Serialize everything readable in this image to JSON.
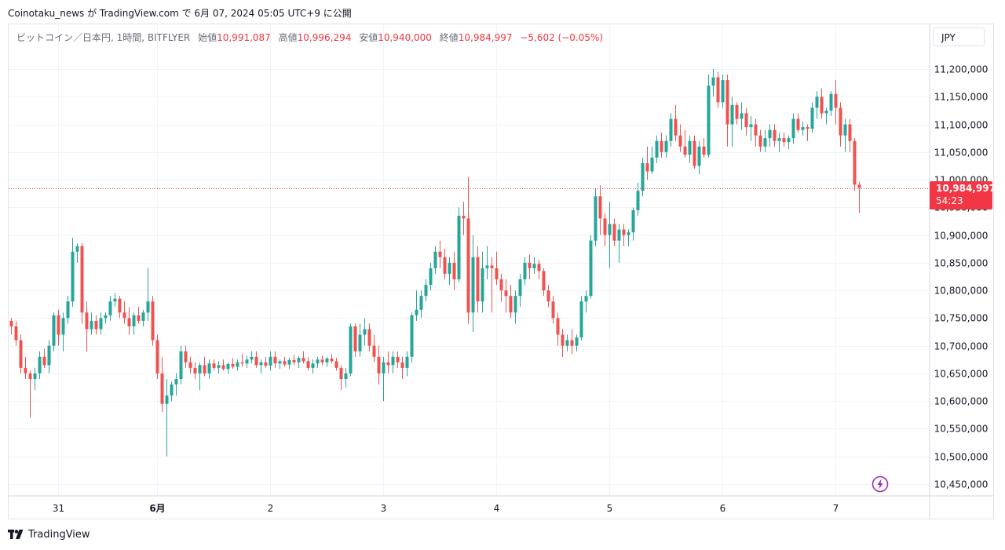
{
  "header": {
    "publish_line": "Coinotaku_news が TradingView.com で 6月 07, 2024 05:05 UTC+9 に公開"
  },
  "legend": {
    "symbol": "ビットコイン／日本円, 1時間, BITFLYER",
    "open_label": "始値",
    "open": "10,991,087",
    "high_label": "高値",
    "high": "10,996,294",
    "low_label": "安値",
    "low": "10,940,000",
    "close_label": "終値",
    "close": "10,984,997",
    "change": "−5,602 (−0.05%)"
  },
  "currency": "JPY",
  "last_price": {
    "price": "10,984,997",
    "countdown": "54:23"
  },
  "brand": "TradingView",
  "colors": {
    "up": "#26a69a",
    "down": "#ef5350",
    "grid": "#f0f3fa",
    "axis_text": "#131722"
  },
  "chart_data": {
    "type": "candlestick",
    "interval": "1時間",
    "symbol": "BTC/JPY",
    "exchange": "BITFLYER",
    "y_axis": {
      "ticks": [
        "11,200,000",
        "11,150,000",
        "11,100,000",
        "11,050,000",
        "11,000,000",
        "10,950,000",
        "10,900,000",
        "10,850,000",
        "10,800,000",
        "10,750,000",
        "10,700,000",
        "10,650,000",
        "10,600,000",
        "10,550,000",
        "10,500,000",
        "10,450,000"
      ],
      "tick_values": [
        11200000,
        11150000,
        11100000,
        11050000,
        11000000,
        10950000,
        10900000,
        10850000,
        10800000,
        10750000,
        10700000,
        10650000,
        10600000,
        10550000,
        10500000,
        10450000
      ],
      "range": [
        10430000,
        11240000
      ]
    },
    "x_axis": {
      "labels": [
        "31",
        "6月",
        "2",
        "3",
        "4",
        "5",
        "6",
        "7"
      ],
      "bold": [
        false,
        true,
        false,
        false,
        false,
        false,
        false,
        false
      ],
      "candle_index": [
        10,
        31,
        55,
        79,
        103,
        127,
        151,
        175
      ]
    },
    "last_price": 10984997,
    "ohlc": [
      [
        10745000,
        10750000,
        10720000,
        10735000
      ],
      [
        10735000,
        10745000,
        10700000,
        10710000
      ],
      [
        10710000,
        10720000,
        10650000,
        10660000
      ],
      [
        10660000,
        10680000,
        10640000,
        10650000
      ],
      [
        10650000,
        10655000,
        10570000,
        10640000
      ],
      [
        10640000,
        10660000,
        10620000,
        10650000
      ],
      [
        10650000,
        10690000,
        10640000,
        10680000
      ],
      [
        10680000,
        10695000,
        10660000,
        10665000
      ],
      [
        10665000,
        10710000,
        10650000,
        10700000
      ],
      [
        10700000,
        10760000,
        10690000,
        10755000
      ],
      [
        10755000,
        10765000,
        10700000,
        10720000
      ],
      [
        10720000,
        10760000,
        10690000,
        10750000
      ],
      [
        10750000,
        10790000,
        10740000,
        10780000
      ],
      [
        10780000,
        10895000,
        10770000,
        10870000
      ],
      [
        10870000,
        10885000,
        10850000,
        10880000
      ],
      [
        10880000,
        10885000,
        10740000,
        10760000
      ],
      [
        10760000,
        10780000,
        10690000,
        10730000
      ],
      [
        10730000,
        10760000,
        10720000,
        10745000
      ],
      [
        10745000,
        10755000,
        10720000,
        10730000
      ],
      [
        10730000,
        10760000,
        10720000,
        10750000
      ],
      [
        10750000,
        10760000,
        10740000,
        10755000
      ],
      [
        10755000,
        10790000,
        10745000,
        10780000
      ],
      [
        10780000,
        10795000,
        10770000,
        10785000
      ],
      [
        10785000,
        10790000,
        10750000,
        10760000
      ],
      [
        10760000,
        10780000,
        10740000,
        10750000
      ],
      [
        10750000,
        10770000,
        10720000,
        10735000
      ],
      [
        10735000,
        10760000,
        10720000,
        10755000
      ],
      [
        10755000,
        10770000,
        10740000,
        10745000
      ],
      [
        10745000,
        10765000,
        10735000,
        10760000
      ],
      [
        10760000,
        10840000,
        10745000,
        10780000
      ],
      [
        10780000,
        10790000,
        10700000,
        10710000
      ],
      [
        10710000,
        10720000,
        10640000,
        10650000
      ],
      [
        10650000,
        10680000,
        10580000,
        10595000
      ],
      [
        10595000,
        10640000,
        10500000,
        10610000
      ],
      [
        10610000,
        10635000,
        10600000,
        10630000
      ],
      [
        10630000,
        10650000,
        10610000,
        10640000
      ],
      [
        10640000,
        10700000,
        10630000,
        10690000
      ],
      [
        10690000,
        10700000,
        10660000,
        10670000
      ],
      [
        10670000,
        10680000,
        10650000,
        10660000
      ],
      [
        10660000,
        10670000,
        10640000,
        10650000
      ],
      [
        10650000,
        10670000,
        10620000,
        10665000
      ],
      [
        10665000,
        10680000,
        10645000,
        10650000
      ],
      [
        10650000,
        10675000,
        10640000,
        10668000
      ],
      [
        10668000,
        10675000,
        10655000,
        10660000
      ],
      [
        10660000,
        10672000,
        10650000,
        10665000
      ],
      [
        10665000,
        10675000,
        10655000,
        10658000
      ],
      [
        10658000,
        10670000,
        10650000,
        10667000
      ],
      [
        10667000,
        10678000,
        10658000,
        10662000
      ],
      [
        10662000,
        10675000,
        10655000,
        10670000
      ],
      [
        10670000,
        10685000,
        10662000,
        10668000
      ],
      [
        10668000,
        10682000,
        10660000,
        10675000
      ],
      [
        10675000,
        10690000,
        10668000,
        10680000
      ],
      [
        10680000,
        10690000,
        10660000,
        10665000
      ],
      [
        10665000,
        10675000,
        10650000,
        10670000
      ],
      [
        10670000,
        10680000,
        10660000,
        10664000
      ],
      [
        10664000,
        10690000,
        10655000,
        10680000
      ],
      [
        10680000,
        10690000,
        10660000,
        10668000
      ],
      [
        10668000,
        10675000,
        10658000,
        10672000
      ],
      [
        10672000,
        10680000,
        10662000,
        10666000
      ],
      [
        10666000,
        10678000,
        10658000,
        10674000
      ],
      [
        10674000,
        10684000,
        10665000,
        10670000
      ],
      [
        10670000,
        10682000,
        10660000,
        10678000
      ],
      [
        10678000,
        10690000,
        10668000,
        10672000
      ],
      [
        10672000,
        10680000,
        10655000,
        10660000
      ],
      [
        10660000,
        10675000,
        10650000,
        10668000
      ],
      [
        10668000,
        10680000,
        10660000,
        10675000
      ],
      [
        10675000,
        10682000,
        10665000,
        10670000
      ],
      [
        10670000,
        10680000,
        10662000,
        10677000
      ],
      [
        10677000,
        10685000,
        10668000,
        10672000
      ],
      [
        10672000,
        10678000,
        10655000,
        10660000
      ],
      [
        10660000,
        10665000,
        10620000,
        10640000
      ],
      [
        10640000,
        10660000,
        10625000,
        10650000
      ],
      [
        10650000,
        10740000,
        10645000,
        10735000
      ],
      [
        10735000,
        10740000,
        10680000,
        10690000
      ],
      [
        10690000,
        10740000,
        10680000,
        10720000
      ],
      [
        10720000,
        10750000,
        10700000,
        10730000
      ],
      [
        10730000,
        10740000,
        10690000,
        10700000
      ],
      [
        10700000,
        10720000,
        10670000,
        10680000
      ],
      [
        10680000,
        10700000,
        10630000,
        10650000
      ],
      [
        10650000,
        10680000,
        10600000,
        10670000
      ],
      [
        10670000,
        10690000,
        10650000,
        10665000
      ],
      [
        10665000,
        10690000,
        10650000,
        10680000
      ],
      [
        10680000,
        10690000,
        10660000,
        10670000
      ],
      [
        10670000,
        10680000,
        10640000,
        10660000
      ],
      [
        10660000,
        10690000,
        10645000,
        10680000
      ],
      [
        10680000,
        10760000,
        10670000,
        10755000
      ],
      [
        10755000,
        10800000,
        10745000,
        10765000
      ],
      [
        10765000,
        10800000,
        10750000,
        10790000
      ],
      [
        10790000,
        10820000,
        10780000,
        10810000
      ],
      [
        10810000,
        10850000,
        10800000,
        10840000
      ],
      [
        10840000,
        10880000,
        10830000,
        10870000
      ],
      [
        10870000,
        10890000,
        10840000,
        10860000
      ],
      [
        10860000,
        10875000,
        10820000,
        10830000
      ],
      [
        10830000,
        10860000,
        10810000,
        10850000
      ],
      [
        10850000,
        10870000,
        10800000,
        10820000
      ],
      [
        10820000,
        10950000,
        10815000,
        10935000
      ],
      [
        10935000,
        10960000,
        10900000,
        10930000
      ],
      [
        10930000,
        11005000,
        10740000,
        10760000
      ],
      [
        10760000,
        10900000,
        10725000,
        10860000
      ],
      [
        10860000,
        10880000,
        10760000,
        10780000
      ],
      [
        10780000,
        10870000,
        10760000,
        10840000
      ],
      [
        10840000,
        10880000,
        10820000,
        10845000
      ],
      [
        10845000,
        10860000,
        10760000,
        10840000
      ],
      [
        10840000,
        10870000,
        10810000,
        10820000
      ],
      [
        10820000,
        10830000,
        10780000,
        10800000
      ],
      [
        10800000,
        10820000,
        10760000,
        10790000
      ],
      [
        10790000,
        10810000,
        10750000,
        10760000
      ],
      [
        10760000,
        10800000,
        10740000,
        10790000
      ],
      [
        10790000,
        10830000,
        10770000,
        10820000
      ],
      [
        10820000,
        10860000,
        10810000,
        10850000
      ],
      [
        10850000,
        10865000,
        10820000,
        10840000
      ],
      [
        10840000,
        10860000,
        10830000,
        10848000
      ],
      [
        10848000,
        10855000,
        10820000,
        10835000
      ],
      [
        10835000,
        10840000,
        10790000,
        10800000
      ],
      [
        10800000,
        10810000,
        10770000,
        10780000
      ],
      [
        10780000,
        10790000,
        10740000,
        10750000
      ],
      [
        10750000,
        10760000,
        10700000,
        10720000
      ],
      [
        10720000,
        10730000,
        10680000,
        10700000
      ],
      [
        10700000,
        10720000,
        10690000,
        10710000
      ],
      [
        10710000,
        10730000,
        10685000,
        10700000
      ],
      [
        10700000,
        10720000,
        10690000,
        10715000
      ],
      [
        10715000,
        10790000,
        10710000,
        10780000
      ],
      [
        10780000,
        10800000,
        10760000,
        10790000
      ],
      [
        10790000,
        10900000,
        10785000,
        10890000
      ],
      [
        10890000,
        10985000,
        10880000,
        10970000
      ],
      [
        10970000,
        10990000,
        10900000,
        10930000
      ],
      [
        10930000,
        10940000,
        10880000,
        10900000
      ],
      [
        10900000,
        10960000,
        10840000,
        10920000
      ],
      [
        10920000,
        10930000,
        10880000,
        10890000
      ],
      [
        10890000,
        10920000,
        10850000,
        10910000
      ],
      [
        10910000,
        10920000,
        10880000,
        10900000
      ],
      [
        10900000,
        10910000,
        10880000,
        10905000
      ],
      [
        10905000,
        10950000,
        10890000,
        10945000
      ],
      [
        10945000,
        10995000,
        10935000,
        10980000
      ],
      [
        10980000,
        11040000,
        10970000,
        11030000
      ],
      [
        11030000,
        11060000,
        11000000,
        11015000
      ],
      [
        11015000,
        11060000,
        11010000,
        11040000
      ],
      [
        11040000,
        11080000,
        11030000,
        11070000
      ],
      [
        11070000,
        11085000,
        11040000,
        11050000
      ],
      [
        11050000,
        11080000,
        11040000,
        11070000
      ],
      [
        11070000,
        11120000,
        11060000,
        11110000
      ],
      [
        11110000,
        11135000,
        11070000,
        11080000
      ],
      [
        11080000,
        11100000,
        11050000,
        11060000
      ],
      [
        11060000,
        11090000,
        11040000,
        11045000
      ],
      [
        11045000,
        11080000,
        11030000,
        11070000
      ],
      [
        11070000,
        11080000,
        11020000,
        11025000
      ],
      [
        11025000,
        11070000,
        11010000,
        11060000
      ],
      [
        11060000,
        11075000,
        11040000,
        11045000
      ],
      [
        11045000,
        11190000,
        11040000,
        11170000
      ],
      [
        11170000,
        11200000,
        11150000,
        11185000
      ],
      [
        11185000,
        11195000,
        11130000,
        11140000
      ],
      [
        11140000,
        11190000,
        11130000,
        11180000
      ],
      [
        11180000,
        11190000,
        11060000,
        11100000
      ],
      [
        11100000,
        11150000,
        11060000,
        11135000
      ],
      [
        11135000,
        11140000,
        11100000,
        11110000
      ],
      [
        11110000,
        11140000,
        11090000,
        11120000
      ],
      [
        11120000,
        11130000,
        11080000,
        11095000
      ],
      [
        11095000,
        11115000,
        11070000,
        11100000
      ],
      [
        11100000,
        11110000,
        11060000,
        11080000
      ],
      [
        11080000,
        11090000,
        11050000,
        11060000
      ],
      [
        11060000,
        11090000,
        11050000,
        11075000
      ],
      [
        11075000,
        11100000,
        11060000,
        11090000
      ],
      [
        11090000,
        11100000,
        11060000,
        11070000
      ],
      [
        11070000,
        11085000,
        11050000,
        11075000
      ],
      [
        11075000,
        11085000,
        11060000,
        11068000
      ],
      [
        11068000,
        11080000,
        11055000,
        11075000
      ],
      [
        11075000,
        11120000,
        11065000,
        11110000
      ],
      [
        11110000,
        11120000,
        11085000,
        11090000
      ],
      [
        11090000,
        11105000,
        11080000,
        11095000
      ],
      [
        11095000,
        11100000,
        11070000,
        11092000
      ],
      [
        11092000,
        11140000,
        11085000,
        11130000
      ],
      [
        11130000,
        11160000,
        11110000,
        11150000
      ],
      [
        11150000,
        11165000,
        11110000,
        11120000
      ],
      [
        11120000,
        11130000,
        11100000,
        11125000
      ],
      [
        11125000,
        11160000,
        11115000,
        11155000
      ],
      [
        11155000,
        11180000,
        11100000,
        11130000
      ],
      [
        11130000,
        11140000,
        11060000,
        11080000
      ],
      [
        11080000,
        11110000,
        11050000,
        11100000
      ],
      [
        11100000,
        11110000,
        11050000,
        11070000
      ],
      [
        11070000,
        11075000,
        10980000,
        10991087
      ],
      [
        10991087,
        10996294,
        10940000,
        10984997
      ]
    ]
  }
}
